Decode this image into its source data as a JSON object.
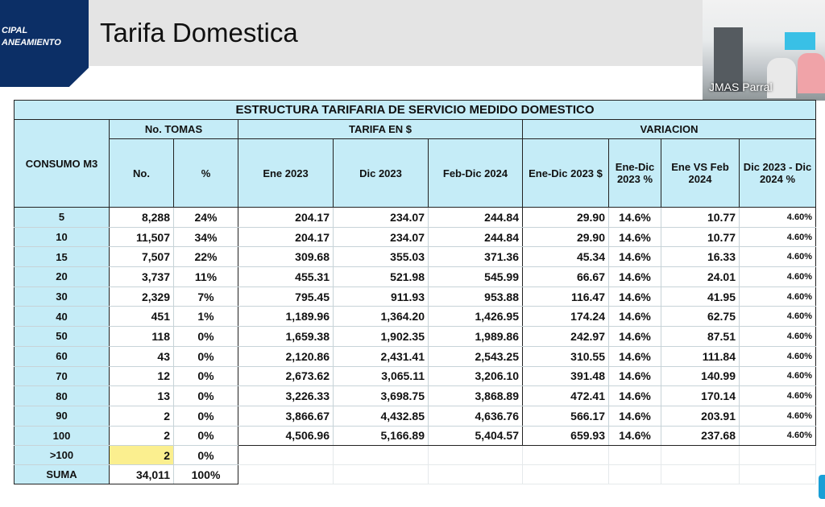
{
  "logo": {
    "line1": "CIPAL",
    "line2": "ANEAMIENTO"
  },
  "slide_title": "Tarifa Domestica",
  "webcam": {
    "label": "JMAS Parral"
  },
  "table": {
    "title": "ESTRUCTURA TARIFARIA DE SERVICIO MEDIDO DOMESTICO",
    "groups": {
      "consumo": "CONSUMO M3",
      "tomas": "No. TOMAS",
      "tarifa": "TARIFA EN $",
      "variacion": "VARIACION"
    },
    "subheaders": [
      "No.",
      "%",
      "Ene 2023",
      "Dic 2023",
      "Feb-Dic 2024",
      "Ene-Dic 2023 $",
      "Ene-Dic 2023 %",
      "Ene VS Feb 2024",
      "Dic 2023 - Dic 2024 %"
    ],
    "rows": [
      [
        "5",
        "8,288",
        "24%",
        "204.17",
        "234.07",
        "244.84",
        "29.90",
        "14.6%",
        "10.77",
        "4.60%"
      ],
      [
        "10",
        "11,507",
        "34%",
        "204.17",
        "234.07",
        "244.84",
        "29.90",
        "14.6%",
        "10.77",
        "4.60%"
      ],
      [
        "15",
        "7,507",
        "22%",
        "309.68",
        "355.03",
        "371.36",
        "45.34",
        "14.6%",
        "16.33",
        "4.60%"
      ],
      [
        "20",
        "3,737",
        "11%",
        "455.31",
        "521.98",
        "545.99",
        "66.67",
        "14.6%",
        "24.01",
        "4.60%"
      ],
      [
        "30",
        "2,329",
        "7%",
        "795.45",
        "911.93",
        "953.88",
        "116.47",
        "14.6%",
        "41.95",
        "4.60%"
      ],
      [
        "40",
        "451",
        "1%",
        "1,189.96",
        "1,364.20",
        "1,426.95",
        "174.24",
        "14.6%",
        "62.75",
        "4.60%"
      ],
      [
        "50",
        "118",
        "0%",
        "1,659.38",
        "1,902.35",
        "1,989.86",
        "242.97",
        "14.6%",
        "87.51",
        "4.60%"
      ],
      [
        "60",
        "43",
        "0%",
        "2,120.86",
        "2,431.41",
        "2,543.25",
        "310.55",
        "14.6%",
        "111.84",
        "4.60%"
      ],
      [
        "70",
        "12",
        "0%",
        "2,673.62",
        "3,065.11",
        "3,206.10",
        "391.48",
        "14.6%",
        "140.99",
        "4.60%"
      ],
      [
        "80",
        "13",
        "0%",
        "3,226.33",
        "3,698.75",
        "3,868.89",
        "472.41",
        "14.6%",
        "170.14",
        "4.60%"
      ],
      [
        "90",
        "2",
        "0%",
        "3,866.67",
        "4,432.85",
        "4,636.76",
        "566.17",
        "14.6%",
        "203.91",
        "4.60%"
      ],
      [
        "100",
        "2",
        "0%",
        "4,506.96",
        "5,166.89",
        "5,404.57",
        "659.93",
        "14.6%",
        "237.68",
        "4.60%"
      ]
    ],
    "over100": [
      "&gt;100",
      "2",
      "0%"
    ],
    "suma": [
      "SUMA",
      "34,011",
      "100%"
    ]
  }
}
